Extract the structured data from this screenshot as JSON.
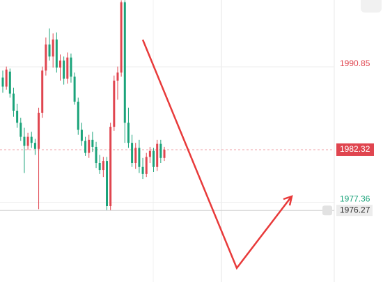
{
  "chart_data": {
    "type": "candlestick",
    "up_color": "#e0454f",
    "down_color": "#1aa37a",
    "ylim": [
      1969.14,
      1997.23
    ],
    "yticks": [
      1990.85,
      1977.36
    ],
    "ytick_colors": [
      "#e0454f",
      "#1aa37a"
    ],
    "current_price": 1982.32,
    "current_price_color": "#e0454f",
    "marker_price": 1976.27,
    "open": [
      1989.5,
      1988.6,
      1990.1,
      1987.9,
      1986.2,
      1985.0,
      1983.6,
      1982.7,
      1983.6,
      1983.0,
      1982.4,
      1986.0,
      1990.2,
      1992.8,
      1991.6,
      1993.3,
      1990.5,
      1991.2,
      1989.4,
      1991.5,
      1989.6,
      1987.1,
      1984.3,
      1983.2,
      1982.0,
      1983.3,
      1982.6,
      1981.0,
      1980.3,
      1981.2,
      1976.7,
      1984.6,
      1989.2,
      1990.0,
      1997.0,
      1985.0,
      1983.0,
      1981.0,
      1982.5,
      1980.6,
      1979.9,
      1981.6,
      1982.2,
      1980.6,
      1982.9,
      1981.5
    ],
    "high": [
      1990.2,
      1990.6,
      1990.4,
      1988.5,
      1986.9,
      1985.5,
      1984.5,
      1984.0,
      1984.1,
      1983.4,
      1986.5,
      1990.6,
      1993.5,
      1994.4,
      1993.9,
      1994.0,
      1991.8,
      1991.6,
      1992.0,
      1991.9,
      1990.0,
      1987.5,
      1985.0,
      1983.6,
      1983.8,
      1984.1,
      1983.1,
      1981.8,
      1981.6,
      1981.6,
      1985.0,
      1989.7,
      1990.6,
      1997.2,
      1997.2,
      1986.5,
      1983.8,
      1983.0,
      1983.3,
      1981.5,
      1982.0,
      1982.6,
      1982.5,
      1983.3,
      1983.3,
      1982.6
    ],
    "low": [
      1988.0,
      1988.3,
      1987.5,
      1985.6,
      1984.5,
      1983.2,
      1980.0,
      1982.3,
      1982.5,
      1981.8,
      1976.4,
      1985.5,
      1989.7,
      1991.2,
      1990.5,
      1990.0,
      1989.2,
      1988.8,
      1988.9,
      1989.0,
      1986.8,
      1983.8,
      1982.7,
      1981.7,
      1981.5,
      1982.1,
      1980.5,
      1979.9,
      1979.6,
      1976.3,
      1976.3,
      1984.2,
      1987.3,
      1989.6,
      1983.0,
      1982.5,
      1980.6,
      1980.4,
      1980.0,
      1979.4,
      1979.6,
      1981.0,
      1980.1,
      1980.2,
      1981.0,
      1981.2
    ],
    "close": [
      1988.6,
      1990.3,
      1987.9,
      1986.2,
      1985.0,
      1983.6,
      1982.7,
      1983.6,
      1983.0,
      1982.4,
      1986.0,
      1990.2,
      1992.8,
      1991.6,
      1993.3,
      1990.5,
      1991.2,
      1989.4,
      1991.5,
      1989.6,
      1987.1,
      1984.3,
      1983.2,
      1982.0,
      1983.3,
      1982.6,
      1981.0,
      1980.3,
      1981.2,
      1976.7,
      1984.6,
      1989.2,
      1990.0,
      1997.0,
      1985.0,
      1983.0,
      1981.0,
      1982.5,
      1980.6,
      1979.9,
      1981.6,
      1982.2,
      1980.6,
      1982.9,
      1981.5,
      1982.32
    ]
  }
}
